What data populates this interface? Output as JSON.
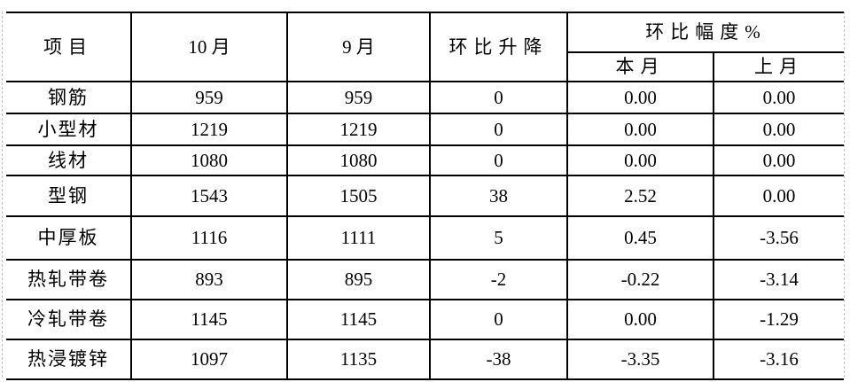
{
  "header": {
    "item": "项目",
    "month_current": "10 月",
    "month_previous": "9 月",
    "mom_change": "环比升降",
    "mom_pct_group": "环比幅度%",
    "pct_this_month": "本月",
    "pct_last_month": "上月"
  },
  "rows": [
    {
      "item": "钢筋",
      "current": "959",
      "previous": "959",
      "change": "0",
      "pct_this": "0.00",
      "pct_last": "0.00"
    },
    {
      "item": "小型材",
      "current": "1219",
      "previous": "1219",
      "change": "0",
      "pct_this": "0.00",
      "pct_last": "0.00"
    },
    {
      "item": "线材",
      "current": "1080",
      "previous": "1080",
      "change": "0",
      "pct_this": "0.00",
      "pct_last": "0.00"
    },
    {
      "item": "型钢",
      "current": "1543",
      "previous": "1505",
      "change": "38",
      "pct_this": "2.52",
      "pct_last": "0.00"
    },
    {
      "item": "中厚板",
      "current": "1116",
      "previous": "1111",
      "change": "5",
      "pct_this": "0.45",
      "pct_last": "-3.56"
    },
    {
      "item": "热轧带卷",
      "current": "893",
      "previous": "895",
      "change": "-2",
      "pct_this": "-0.22",
      "pct_last": "-3.14"
    },
    {
      "item": "冷轧带卷",
      "current": "1145",
      "previous": "1145",
      "change": "0",
      "pct_this": "0.00",
      "pct_last": "-1.29"
    },
    {
      "item": "热浸镀锌",
      "current": "1097",
      "previous": "1135",
      "change": "-38",
      "pct_this": "-3.35",
      "pct_last": "-3.16"
    }
  ],
  "colors": {
    "border": "#000000",
    "text": "#000000",
    "background": "#ffffff",
    "gridline": "#bdbdbd"
  }
}
